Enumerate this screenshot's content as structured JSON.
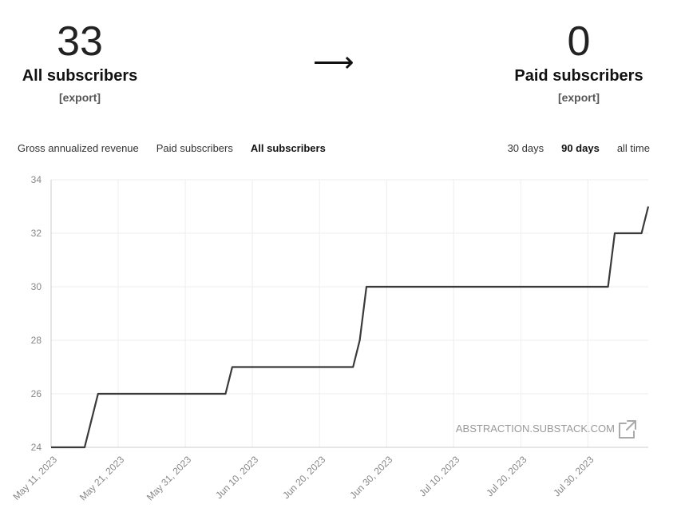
{
  "summary": {
    "all_subscribers": {
      "count": "33",
      "label": "All subscribers",
      "export": "[export]"
    },
    "arrow": "⟶",
    "paid_subscribers": {
      "count": "0",
      "label": "Paid subscribers",
      "export": "[export]"
    }
  },
  "metric_tabs": [
    {
      "label": "Gross annualized revenue",
      "active": false
    },
    {
      "label": "Paid subscribers",
      "active": false
    },
    {
      "label": "All subscribers",
      "active": true
    }
  ],
  "range_tabs": [
    {
      "label": "30 days",
      "active": false
    },
    {
      "label": "90 days",
      "active": true
    },
    {
      "label": "all time",
      "active": false
    }
  ],
  "watermark": {
    "text": "ABSTRACTION.SUBSTACK.COM",
    "icon": "external-link-icon"
  },
  "colors": {
    "line": "#3a3a3a",
    "grid": "#eeeeee",
    "axis": "#cccccc",
    "tick": "#888888"
  },
  "chart_data": {
    "type": "line",
    "title": "",
    "xlabel": "",
    "ylabel": "",
    "ylim": [
      24,
      34
    ],
    "xlim": [
      "2023-05-11",
      "2023-08-08"
    ],
    "y_ticks": [
      "24",
      "26",
      "28",
      "30",
      "32",
      "34"
    ],
    "x_ticks": [
      {
        "date": "2023-05-11",
        "label": "May 11, 2023"
      },
      {
        "date": "2023-05-21",
        "label": "May 21, 2023"
      },
      {
        "date": "2023-05-31",
        "label": "May 31, 2023"
      },
      {
        "date": "2023-06-10",
        "label": "Jun 10, 2023"
      },
      {
        "date": "2023-06-20",
        "label": "Jun 20, 2023"
      },
      {
        "date": "2023-06-30",
        "label": "Jun 30, 2023"
      },
      {
        "date": "2023-07-10",
        "label": "Jul 10, 2023"
      },
      {
        "date": "2023-07-20",
        "label": "Jul 20, 2023"
      },
      {
        "date": "2023-07-30",
        "label": "Jul 30, 2023"
      }
    ],
    "grid": true,
    "series": [
      {
        "points": [
          {
            "x": "2023-05-11",
            "y": 24
          },
          {
            "x": "2023-05-16",
            "y": 24
          },
          {
            "x": "2023-05-18",
            "y": 26
          },
          {
            "x": "2023-06-06",
            "y": 26
          },
          {
            "x": "2023-06-07",
            "y": 27
          },
          {
            "x": "2023-06-25",
            "y": 27
          },
          {
            "x": "2023-06-26",
            "y": 28
          },
          {
            "x": "2023-06-27",
            "y": 30
          },
          {
            "x": "2023-08-02",
            "y": 30
          },
          {
            "x": "2023-08-03",
            "y": 32
          },
          {
            "x": "2023-08-07",
            "y": 32
          },
          {
            "x": "2023-08-08",
            "y": 33
          }
        ]
      }
    ]
  }
}
